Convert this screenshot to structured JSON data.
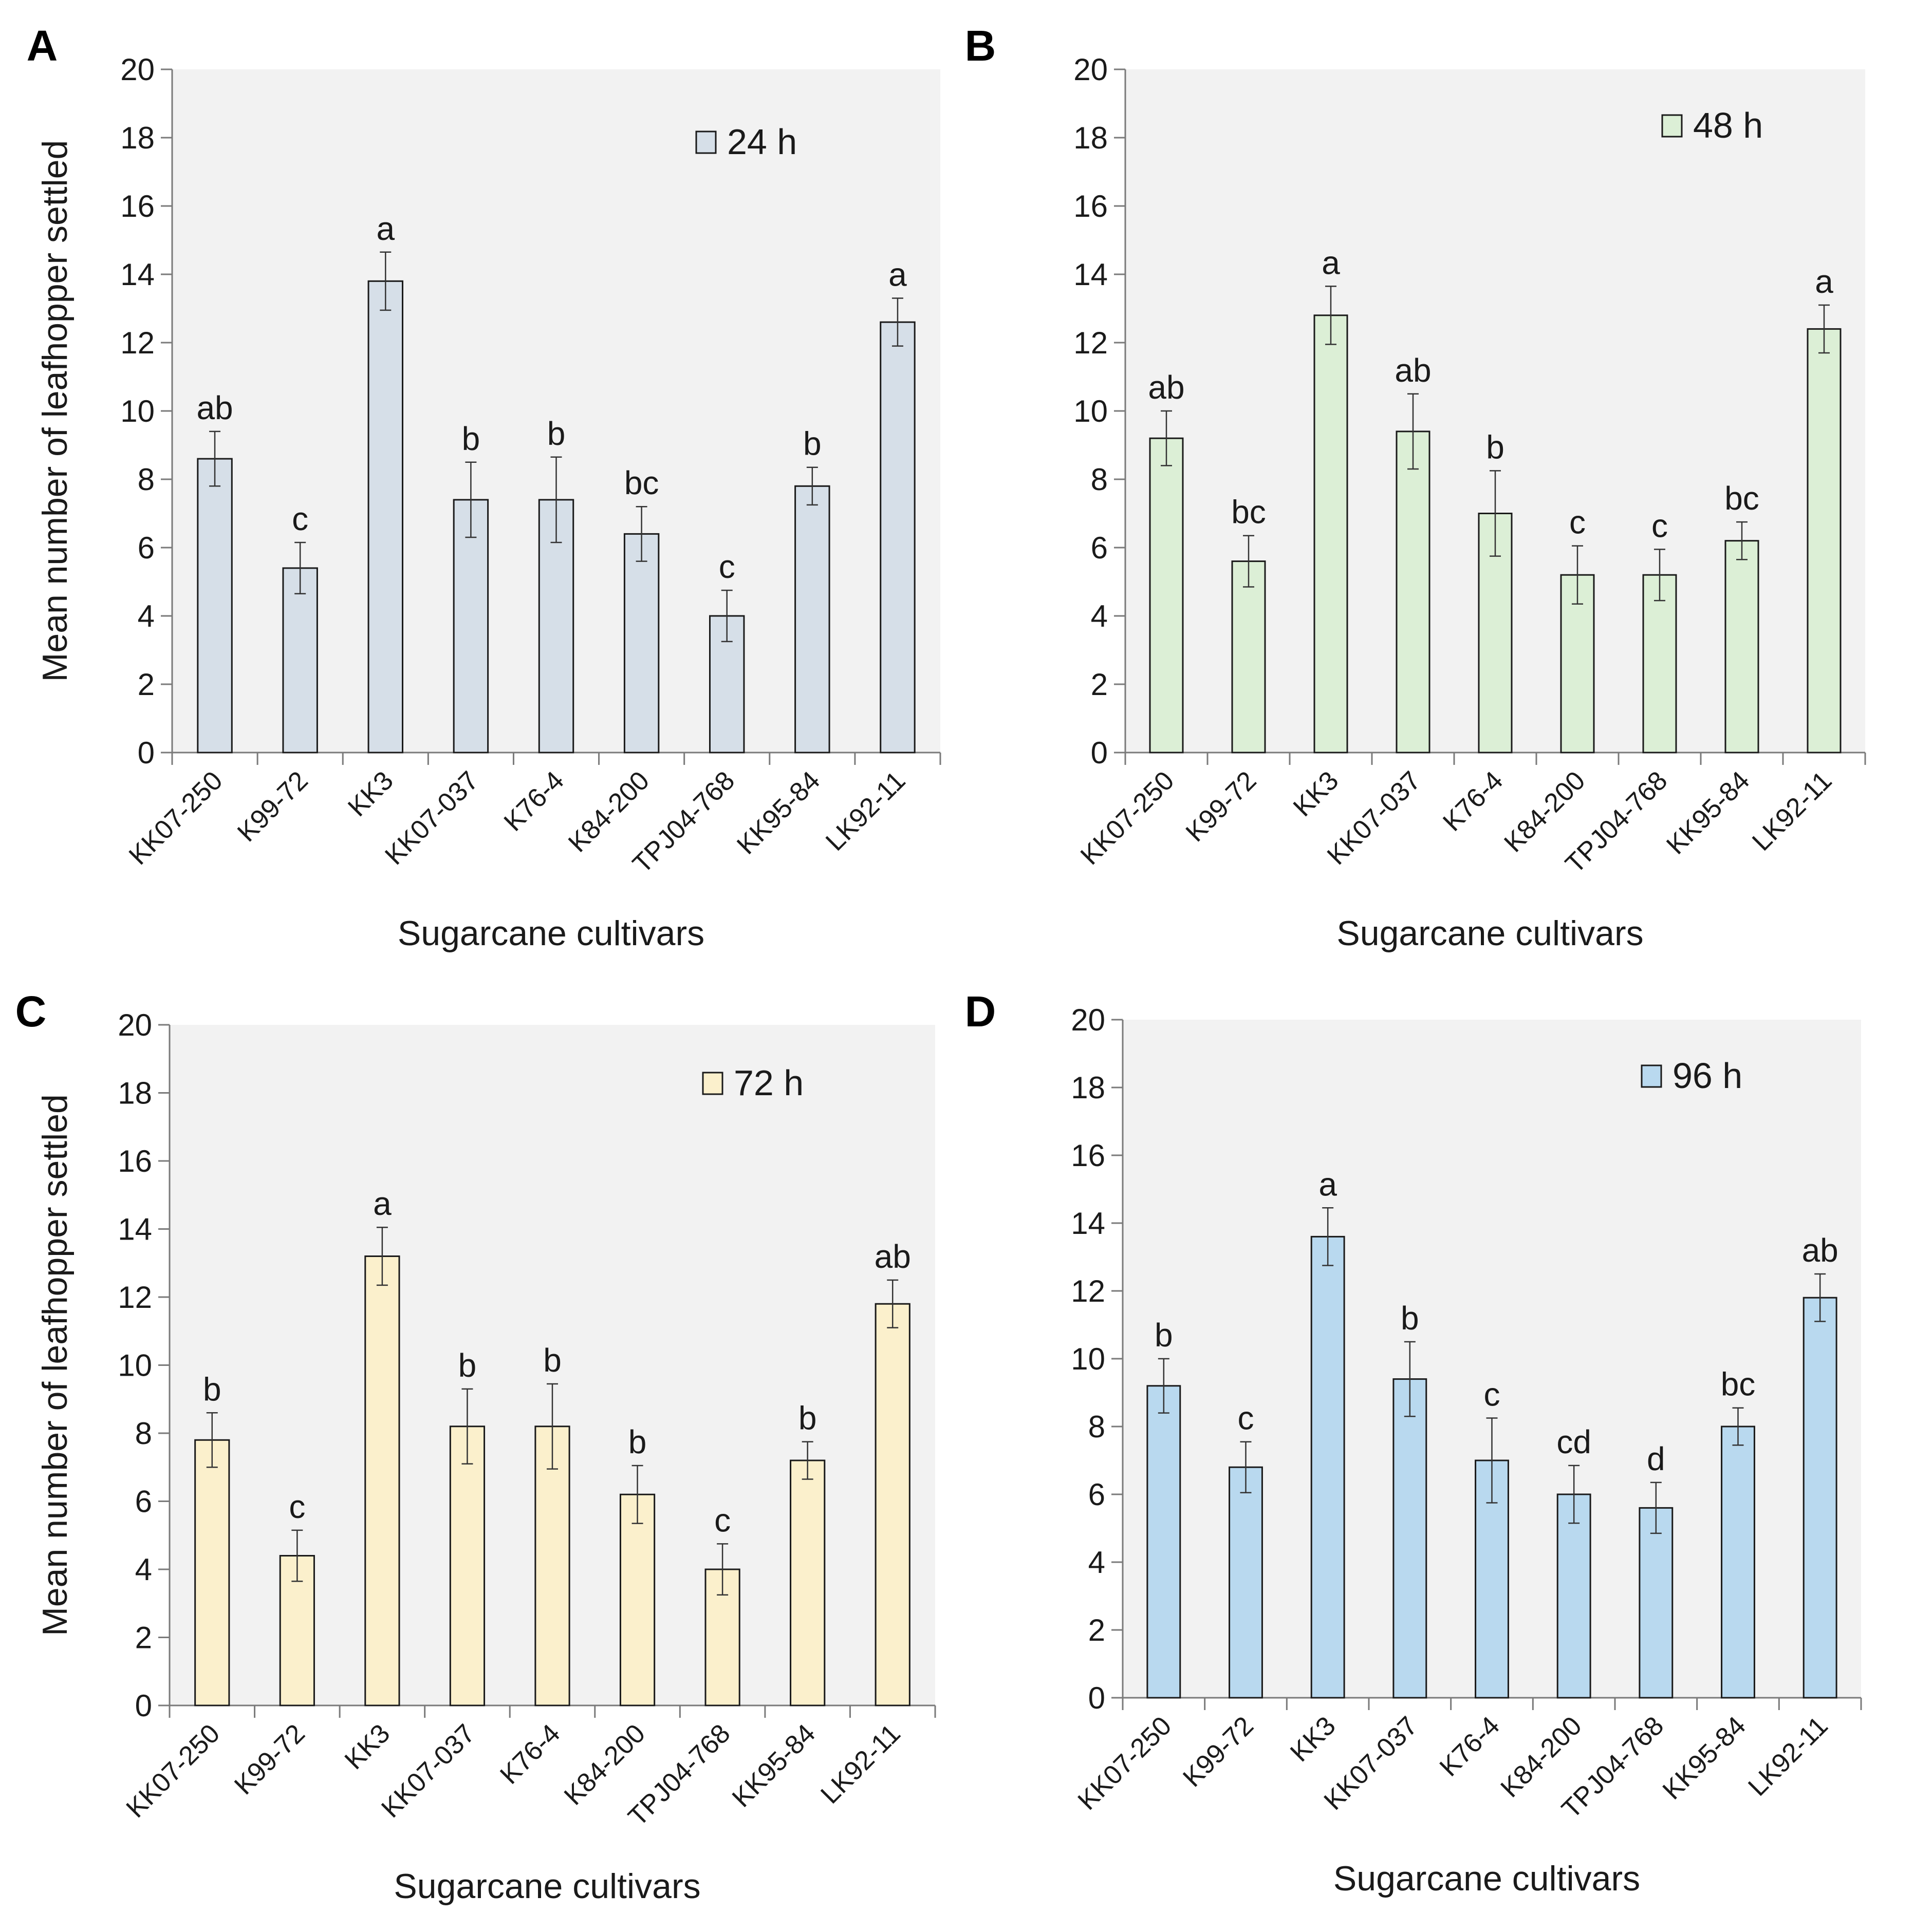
{
  "figure": {
    "y_axis_label": "Mean number of leafhopper settled",
    "x_axis_label": "Sugarcane cultivars"
  },
  "chart_data": [
    {
      "panel": "A",
      "type": "bar",
      "title": "",
      "xlabel": "Sugarcane cultivars",
      "ylabel": "Mean number of leafhopper settled",
      "ylim": [
        0,
        20
      ],
      "yticks": [
        0,
        2,
        4,
        6,
        8,
        10,
        12,
        14,
        16,
        18,
        20
      ],
      "legend": "24 h",
      "color": "#d6dfe8",
      "categories": [
        "KK07-250",
        "K99-72",
        "KK3",
        "KK07-037",
        "K76-4",
        "K84-200",
        "TPJ04-768",
        "KK95-84",
        "LK92-11"
      ],
      "values": [
        8.6,
        5.4,
        13.8,
        7.4,
        7.4,
        6.4,
        4.0,
        7.8,
        12.6
      ],
      "errors": [
        0.8,
        0.75,
        0.85,
        1.1,
        1.25,
        0.8,
        0.75,
        0.55,
        0.7
      ],
      "labels": [
        "ab",
        "c",
        "a",
        "b",
        "b",
        "bc",
        "c",
        "b",
        "a"
      ]
    },
    {
      "panel": "B",
      "type": "bar",
      "title": "",
      "xlabel": "Sugarcane cultivars",
      "ylabel": "",
      "ylim": [
        0,
        20
      ],
      "yticks": [
        0,
        2,
        4,
        6,
        8,
        10,
        12,
        14,
        16,
        18,
        20
      ],
      "legend": "48 h",
      "color": "#dcefd6",
      "categories": [
        "KK07-250",
        "K99-72",
        "KK3",
        "KK07-037",
        "K76-4",
        "K84-200",
        "TPJ04-768",
        "KK95-84",
        "LK92-11"
      ],
      "values": [
        9.2,
        5.6,
        12.8,
        9.4,
        7.0,
        5.2,
        5.2,
        6.2,
        12.4
      ],
      "errors": [
        0.8,
        0.75,
        0.85,
        1.1,
        1.25,
        0.85,
        0.75,
        0.55,
        0.7
      ],
      "labels": [
        "ab",
        "bc",
        "a",
        "ab",
        "b",
        "c",
        "c",
        "bc",
        "a"
      ]
    },
    {
      "panel": "C",
      "type": "bar",
      "title": "",
      "xlabel": "Sugarcane cultivars",
      "ylabel": "Mean number of leafhopper settled",
      "ylim": [
        0,
        20
      ],
      "yticks": [
        0,
        2,
        4,
        6,
        8,
        10,
        12,
        14,
        16,
        18,
        20
      ],
      "legend": "72 h",
      "color": "#fbf0cc",
      "categories": [
        "KK07-250",
        "K99-72",
        "KK3",
        "KK07-037",
        "K76-4",
        "K84-200",
        "TPJ04-768",
        "KK95-84",
        "LK92-11"
      ],
      "values": [
        7.8,
        4.4,
        13.2,
        8.2,
        8.2,
        6.2,
        4.0,
        7.2,
        11.8
      ],
      "errors": [
        0.8,
        0.75,
        0.85,
        1.1,
        1.25,
        0.85,
        0.75,
        0.55,
        0.7
      ],
      "labels": [
        "b",
        "c",
        "a",
        "b",
        "b",
        "b",
        "c",
        "b",
        "ab"
      ]
    },
    {
      "panel": "D",
      "type": "bar",
      "title": "",
      "xlabel": "Sugarcane cultivars",
      "ylabel": "",
      "ylim": [
        0,
        20
      ],
      "yticks": [
        0,
        2,
        4,
        6,
        8,
        10,
        12,
        14,
        16,
        18,
        20
      ],
      "legend": "96 h",
      "color": "#b9d9ef",
      "categories": [
        "KK07-250",
        "K99-72",
        "KK3",
        "KK07-037",
        "K76-4",
        "K84-200",
        "TPJ04-768",
        "KK95-84",
        "LK92-11"
      ],
      "values": [
        9.2,
        6.8,
        13.6,
        9.4,
        7.0,
        6.0,
        5.6,
        8.0,
        11.8
      ],
      "errors": [
        0.8,
        0.75,
        0.85,
        1.1,
        1.25,
        0.85,
        0.75,
        0.55,
        0.7
      ],
      "labels": [
        "b",
        "c",
        "a",
        "b",
        "c",
        "cd",
        "d",
        "bc",
        "ab"
      ]
    }
  ]
}
